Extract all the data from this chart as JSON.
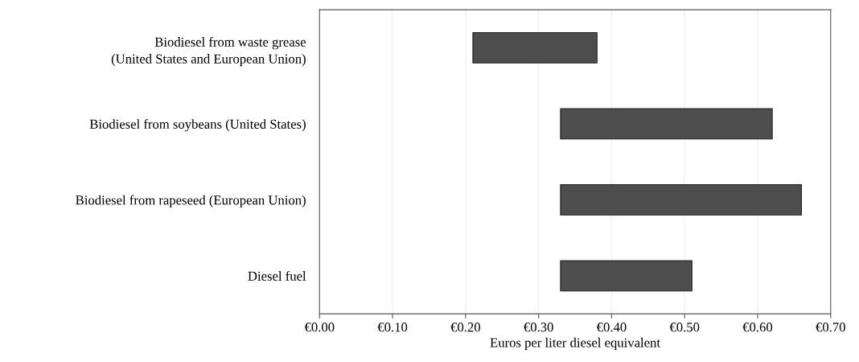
{
  "chart_data": {
    "type": "bar",
    "orientation": "horizontal",
    "categories": [
      "Biodiesel from waste grease\n(United States and European Union)",
      "Biodiesel from soybeans (United States)",
      "Biodiesel from rapeseed (European Union)",
      "Diesel fuel"
    ],
    "base": [
      0.21,
      0.33,
      0.33,
      0.33
    ],
    "values": [
      0.17,
      0.29,
      0.33,
      0.18
    ],
    "color": "#4d4d4d",
    "xlabel": "Euros per liter diesel equivalent",
    "xlim": [
      0,
      0.7
    ],
    "xticks": [
      {
        "value": 0,
        "label": "€0.00"
      },
      {
        "value": 0.1,
        "label": "€0.10"
      },
      {
        "value": 0.2,
        "label": "€0.20"
      },
      {
        "value": 0.3,
        "label": "€0.30"
      },
      {
        "value": 0.4,
        "label": "€0.40"
      },
      {
        "value": 0.5,
        "label": "€0.50"
      },
      {
        "value": 0.6,
        "label": "€0.60"
      },
      {
        "value": 0.7,
        "label": "€0.70"
      }
    ],
    "grid": "x"
  }
}
